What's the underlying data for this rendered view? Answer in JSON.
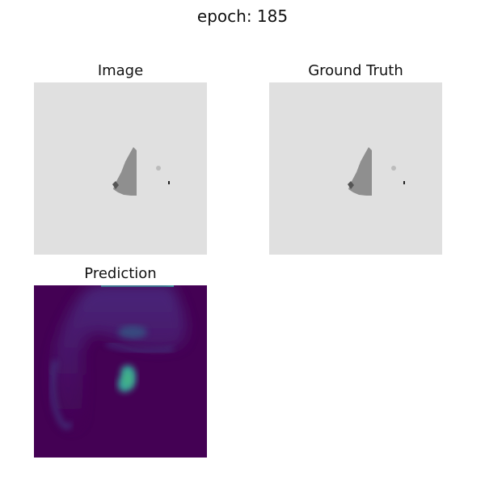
{
  "figure": {
    "suptitle": "epoch: 185"
  },
  "panels": [
    {
      "title": "Image",
      "kind": "grayscale-image",
      "background_color": "#e0e0e0",
      "structure_color": "#8f8f8f",
      "detail_color": "#555555"
    },
    {
      "title": "Ground Truth",
      "kind": "grayscale-image",
      "background_color": "#e0e0e0",
      "structure_color": "#8f8f8f",
      "detail_color": "#555555"
    },
    {
      "title": "Prediction",
      "kind": "heatmap",
      "colormap": "viridis",
      "background_color": "#440154",
      "band_color": "#3f4a8a",
      "highlight_color": "#35b7a3"
    }
  ]
}
